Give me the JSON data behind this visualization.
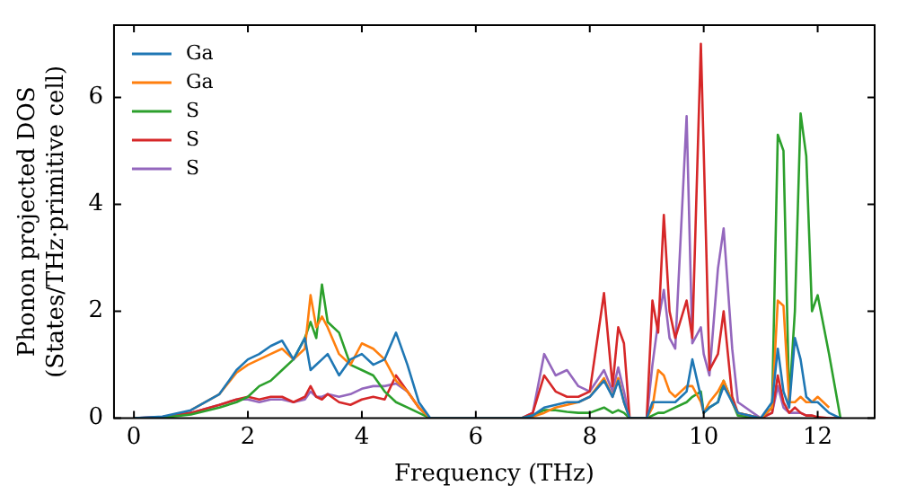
{
  "chart_data": {
    "type": "line",
    "xlabel": "Frequency (THz)",
    "ylabel": "Phonon projected DOS\n(States/THz·primitive cell)",
    "x": [
      0,
      0.5,
      1,
      1.5,
      1.8,
      2,
      2.2,
      2.4,
      2.6,
      2.8,
      3,
      3.1,
      3.2,
      3.3,
      3.4,
      3.6,
      3.8,
      4,
      4.2,
      4.4,
      4.6,
      4.8,
      5,
      5.2,
      6.8,
      7,
      7.2,
      7.4,
      7.6,
      7.8,
      8,
      8.25,
      8.4,
      8.5,
      8.6,
      8.7,
      9,
      9.1,
      9.2,
      9.3,
      9.4,
      9.5,
      9.7,
      9.8,
      9.95,
      10,
      10.1,
      10.25,
      10.35,
      10.5,
      10.6,
      11,
      11.2,
      11.3,
      11.4,
      11.5,
      11.6,
      11.7,
      11.8,
      11.9,
      12,
      12.2,
      12.4
    ],
    "series": [
      {
        "name": "Ga",
        "color": "#1f77b4",
        "values": [
          0,
          0.03,
          0.15,
          0.45,
          0.9,
          1.1,
          1.2,
          1.35,
          1.45,
          1.1,
          1.5,
          0.9,
          1.0,
          1.1,
          1.2,
          0.8,
          1.1,
          1.2,
          1.0,
          1.1,
          1.6,
          1.0,
          0.3,
          0,
          0,
          0.05,
          0.2,
          0.25,
          0.3,
          0.3,
          0.4,
          0.7,
          0.4,
          0.7,
          0.3,
          0,
          0,
          0.3,
          0.3,
          0.3,
          0.3,
          0.3,
          0.5,
          1.1,
          0.4,
          0.1,
          0.2,
          0.3,
          0.6,
          0.3,
          0.1,
          0,
          0.3,
          1.3,
          0.5,
          0.2,
          1.5,
          1.1,
          0.4,
          0.3,
          0.3,
          0.1,
          0
        ]
      },
      {
        "name": "Ga",
        "color": "#ff7f0e",
        "values": [
          null,
          null,
          0.15,
          0.45,
          0.85,
          1.0,
          1.1,
          1.2,
          1.3,
          1.1,
          1.3,
          2.3,
          1.7,
          1.9,
          1.7,
          1.2,
          1.0,
          1.4,
          1.3,
          1.1,
          0.7,
          0.5,
          0.2,
          0,
          0,
          0.03,
          0.1,
          0.2,
          0.25,
          0.3,
          0.4,
          0.75,
          0.4,
          0.75,
          0.3,
          0,
          0,
          0.2,
          0.9,
          0.8,
          0.5,
          0.4,
          0.6,
          0.6,
          0.3,
          0.1,
          0.3,
          0.5,
          0.7,
          0.3,
          0.1,
          0,
          0.2,
          2.2,
          2.1,
          0.3,
          0.3,
          0.4,
          0.3,
          0.3,
          0.4,
          0.2,
          null
        ]
      },
      {
        "name": "S",
        "color": "#2ca02c",
        "values": [
          0,
          0.01,
          0.07,
          0.2,
          0.3,
          0.4,
          0.6,
          0.7,
          0.9,
          1.1,
          1.5,
          1.8,
          1.5,
          2.5,
          1.8,
          1.6,
          1.0,
          0.9,
          0.8,
          0.5,
          0.3,
          0.2,
          0.1,
          0,
          0,
          0.05,
          0.15,
          0.15,
          0.12,
          0.1,
          0.1,
          0.2,
          0.1,
          0.15,
          0.1,
          0,
          0,
          0.05,
          0.1,
          0.1,
          0.15,
          0.2,
          0.3,
          0.4,
          0.5,
          0.1,
          0.2,
          0.3,
          0.7,
          0.3,
          0.05,
          0,
          0.2,
          5.3,
          5.0,
          0.3,
          2.0,
          5.7,
          4.9,
          2.0,
          2.3,
          1.2,
          0
        ]
      },
      {
        "name": "S",
        "color": "#d62728",
        "values": [
          0,
          0.02,
          0.1,
          0.25,
          0.35,
          0.4,
          0.35,
          0.4,
          0.4,
          0.3,
          0.4,
          0.6,
          0.4,
          0.35,
          0.45,
          0.3,
          0.25,
          0.35,
          0.4,
          0.35,
          0.8,
          0.5,
          0.2,
          0,
          0,
          0.1,
          0.8,
          0.5,
          0.4,
          0.4,
          0.5,
          2.34,
          0.6,
          1.7,
          1.4,
          0,
          0,
          2.2,
          1.6,
          3.8,
          2.0,
          1.5,
          2.2,
          1.5,
          7.0,
          5.0,
          0.9,
          1.2,
          2.0,
          0.4,
          0.1,
          0,
          0.1,
          0.8,
          0.3,
          0.1,
          0.2,
          0.1,
          0.05,
          0.05,
          0.02,
          0,
          0
        ]
      },
      {
        "name": "S",
        "color": "#9467bd",
        "values": [
          0,
          0.02,
          0.1,
          0.25,
          0.35,
          0.35,
          0.3,
          0.35,
          0.35,
          0.3,
          0.35,
          0.5,
          0.4,
          0.4,
          0.45,
          0.4,
          0.45,
          0.55,
          0.6,
          0.6,
          0.65,
          0.5,
          0.2,
          0,
          0,
          0.1,
          1.2,
          0.8,
          0.9,
          0.6,
          0.5,
          0.9,
          0.5,
          0.95,
          0.5,
          0,
          0,
          1.0,
          1.8,
          2.4,
          1.5,
          1.3,
          5.65,
          1.4,
          1.7,
          1.2,
          0.8,
          2.8,
          3.55,
          1.3,
          0.3,
          0,
          0.1,
          0.6,
          0.2,
          0.1,
          0.1,
          0.1,
          0.05,
          0.05,
          null,
          null,
          null
        ]
      }
    ],
    "xlim": [
      -0.35,
      13
    ],
    "ylim": [
      0,
      7.35
    ],
    "xticks": [
      0,
      2,
      4,
      6,
      8,
      10,
      12
    ],
    "yticks": [
      0,
      2,
      4,
      6
    ],
    "grid": false,
    "legend": "top left",
    "marker": "none",
    "line_style": "solid"
  }
}
